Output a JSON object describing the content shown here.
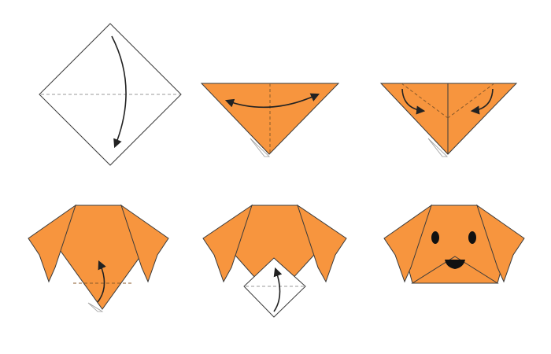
{
  "diagram": {
    "kind": "origami-instructions",
    "subject": "dog-face",
    "step_count": 6,
    "colors": {
      "paper_front": "#F7953E",
      "paper_back": "#FFFFFF",
      "outline": "#3A3A3A",
      "fold_line": "#9A9A9A",
      "arrow": "#222222",
      "face_features": "#111111"
    },
    "steps": [
      {
        "id": "step-1",
        "action": "fold-square-diagonally-in-half",
        "arrow": "curved-downward"
      },
      {
        "id": "step-2",
        "action": "fold-corners-toward-center-and-back",
        "arrow": "double-headed-curve"
      },
      {
        "id": "step-3",
        "action": "fold-top-edges-down",
        "arrow": "two-curved-inward"
      },
      {
        "id": "step-4",
        "action": "fold-bottom-tip-up",
        "arrow": "curved-upward"
      },
      {
        "id": "step-5",
        "action": "fold-tip-up-to-form-muzzle",
        "arrow": "curved-upward"
      },
      {
        "id": "step-6",
        "action": "finished-dog-face",
        "arrow": "none",
        "features": [
          "left-eye",
          "right-eye",
          "nose"
        ]
      }
    ]
  }
}
